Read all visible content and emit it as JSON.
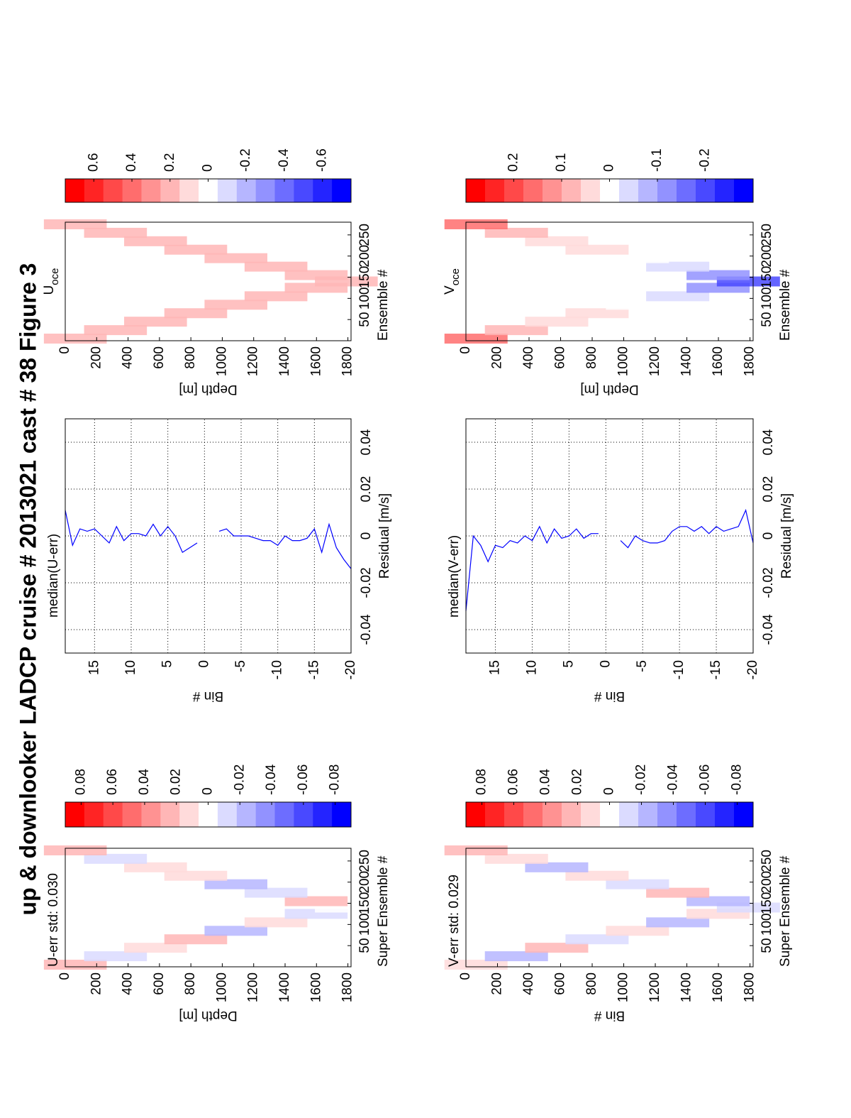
{
  "chart_data": [
    {
      "type": "heatmap",
      "title": "U-err std: 0.030",
      "ylabel": "Depth [m]",
      "xlabel": "Super Ensemble #",
      "x": [
        5,
        25,
        45,
        65,
        85,
        105,
        125,
        140,
        155,
        175,
        195,
        215,
        235,
        255,
        275
      ],
      "y": [
        64,
        320,
        575,
        831,
        1087,
        1342,
        1598,
        1790,
        1598,
        1342,
        1087,
        831,
        575,
        320,
        64
      ],
      "values": [
        0.02,
        -0.01,
        0.01,
        0.02,
        -0.02,
        0.01,
        -0.01,
        0.0,
        0.02,
        -0.01,
        -0.02,
        0.01,
        0.01,
        -0.01,
        0.02
      ],
      "xlim": [
        0,
        280
      ],
      "xticks": [
        50,
        100,
        150,
        200,
        250
      ],
      "ylim": [
        0,
        1820
      ],
      "yticks": [
        0,
        200,
        400,
        600,
        800,
        1000,
        1200,
        1400,
        1600,
        1800
      ],
      "y_reversed": true,
      "clim": [
        -0.09,
        0.09
      ],
      "cticks": [
        0.08,
        0.06,
        0.04,
        0.02,
        0,
        -0.02,
        -0.04,
        -0.06,
        -0.08
      ]
    },
    {
      "type": "line",
      "title": "median(U-err)",
      "xlabel": "Residual [m/s]",
      "ylabel": "Bin #",
      "color": "#0000ff",
      "y": [
        19,
        18,
        17,
        16,
        15,
        14,
        13,
        12,
        11,
        10,
        9,
        8,
        7,
        6,
        5,
        4,
        3,
        2,
        1,
        0,
        -1,
        -2,
        -3,
        -4,
        -5,
        -6,
        -7,
        -8,
        -9,
        -10,
        -11,
        -12,
        -13,
        -14,
        -15,
        -16,
        -17,
        -18,
        -19,
        -20
      ],
      "values": [
        0.011,
        -0.004,
        0.003,
        0.002,
        0.003,
        0.0,
        -0.003,
        0.004,
        -0.002,
        0.001,
        0.001,
        0.0,
        0.005,
        0.0,
        0.004,
        0.0,
        -0.007,
        -0.005,
        -0.003,
        null,
        null,
        0.002,
        0.003,
        0.0,
        0.0,
        0.0,
        -0.001,
        -0.002,
        -0.002,
        -0.004,
        0.0,
        -0.002,
        -0.002,
        -0.001,
        0.003,
        -0.007,
        0.005,
        -0.005,
        -0.01,
        -0.014
      ],
      "xlim": [
        -0.05,
        0.05
      ],
      "xticks": [
        -0.04,
        -0.02,
        0,
        0.02,
        0.04
      ],
      "ylim": [
        -20,
        19
      ],
      "yticks": [
        15,
        10,
        5,
        0,
        -5,
        -10,
        -15,
        -20
      ],
      "grid": true
    },
    {
      "type": "heatmap",
      "title": "U",
      "title_sub": "oce",
      "ylabel": "Depth [m]",
      "xlabel": "Ensemble #",
      "x": [
        5,
        25,
        45,
        65,
        85,
        105,
        125,
        140,
        155,
        175,
        195,
        215,
        235,
        255,
        275
      ],
      "y": [
        64,
        320,
        575,
        831,
        1087,
        1342,
        1598,
        1790,
        1598,
        1342,
        1087,
        831,
        575,
        320,
        64
      ],
      "values": [
        0.25,
        0.2,
        0.2,
        0.2,
        0.2,
        0.2,
        0.25,
        0.2,
        0.2,
        0.2,
        0.2,
        0.2,
        0.2,
        0.2,
        0.25
      ],
      "xlim": [
        0,
        280
      ],
      "xticks": [
        50,
        100,
        150,
        200,
        250
      ],
      "ylim": [
        0,
        1820
      ],
      "yticks": [
        0,
        200,
        400,
        600,
        800,
        1000,
        1200,
        1400,
        1600,
        1800
      ],
      "y_reversed": true,
      "clim": [
        -0.75,
        0.75
      ],
      "cticks": [
        0.6,
        0.4,
        0.2,
        0,
        -0.2,
        -0.4,
        -0.6
      ]
    },
    {
      "type": "heatmap",
      "title": "V-err std: 0.029",
      "ylabel": "Bin #",
      "xlabel": "Super Ensemble #",
      "x": [
        5,
        25,
        45,
        65,
        85,
        105,
        125,
        140,
        155,
        175,
        195,
        215,
        235,
        255,
        275
      ],
      "y": [
        64,
        320,
        575,
        831,
        1087,
        1342,
        1598,
        1790,
        1598,
        1342,
        1087,
        831,
        575,
        320,
        64
      ],
      "values": [
        0.01,
        -0.02,
        0.02,
        -0.01,
        0.01,
        -0.02,
        0.01,
        -0.01,
        -0.02,
        0.02,
        -0.01,
        0.01,
        -0.02,
        0.01,
        0.02
      ],
      "xlim": [
        0,
        280
      ],
      "xticks": [
        50,
        100,
        150,
        200,
        250
      ],
      "ylim": [
        0,
        1820
      ],
      "yticks": [
        0,
        200,
        400,
        600,
        800,
        1000,
        1200,
        1400,
        1600,
        1800
      ],
      "y_reversed": true,
      "clim": [
        -0.09,
        0.09
      ],
      "cticks": [
        0.08,
        0.06,
        0.04,
        0.02,
        0,
        -0.02,
        -0.04,
        -0.06,
        -0.08
      ]
    },
    {
      "type": "line",
      "title": "median(V-err)",
      "xlabel": "Residual [m/s]",
      "ylabel": "Bin #",
      "color": "#0000ff",
      "y": [
        19,
        18,
        17,
        16,
        15,
        14,
        13,
        12,
        11,
        10,
        9,
        8,
        7,
        6,
        5,
        4,
        3,
        2,
        1,
        0,
        -1,
        -2,
        -3,
        -4,
        -5,
        -6,
        -7,
        -8,
        -9,
        -10,
        -11,
        -12,
        -13,
        -14,
        -15,
        -16,
        -17,
        -18,
        -19,
        -20
      ],
      "values": [
        -0.032,
        0.0,
        -0.004,
        -0.011,
        -0.004,
        -0.005,
        -0.002,
        -0.003,
        0.0,
        -0.002,
        0.004,
        -0.003,
        0.003,
        -0.001,
        0.0,
        0.003,
        -0.001,
        0.001,
        0.001,
        null,
        null,
        -0.002,
        -0.005,
        0.0,
        -0.002,
        -0.003,
        -0.003,
        -0.002,
        0.002,
        0.004,
        0.004,
        0.002,
        0.004,
        0.001,
        0.004,
        0.002,
        0.003,
        0.004,
        0.011,
        -0.003
      ],
      "xlim": [
        -0.05,
        0.05
      ],
      "xticks": [
        -0.04,
        -0.02,
        0,
        0.02,
        0.04
      ],
      "ylim": [
        -20,
        19
      ],
      "yticks": [
        15,
        10,
        5,
        0,
        -5,
        -10,
        -15,
        -20
      ],
      "grid": true
    },
    {
      "type": "heatmap",
      "title": "V",
      "title_sub": "oce",
      "ylabel": "Depth [m]",
      "xlabel": "Ensemble #",
      "x": [
        5,
        25,
        45,
        65,
        85,
        105,
        125,
        140,
        155,
        175,
        195,
        215,
        235,
        255,
        275
      ],
      "y": [
        64,
        320,
        575,
        831,
        1087,
        1342,
        1598,
        1790,
        1598,
        1342,
        1087,
        831,
        575,
        320,
        64
      ],
      "values": [
        0.15,
        0.08,
        0.05,
        0.03,
        0.0,
        -0.05,
        -0.12,
        -0.18,
        -0.12,
        -0.05,
        0.0,
        0.03,
        0.05,
        0.08,
        0.15
      ],
      "xlim": [
        0,
        280
      ],
      "xticks": [
        50,
        100,
        150,
        200,
        250
      ],
      "ylim": [
        0,
        1820
      ],
      "yticks": [
        0,
        200,
        400,
        600,
        800,
        1000,
        1200,
        1400,
        1600,
        1800
      ],
      "y_reversed": true,
      "clim": [
        -0.3,
        0.3
      ],
      "cticks": [
        0.2,
        0.1,
        0,
        -0.1,
        -0.2
      ]
    }
  ],
  "figure_title": "up & downlooker LADCP cruise # 2013021 cast # 38  Figure 3"
}
